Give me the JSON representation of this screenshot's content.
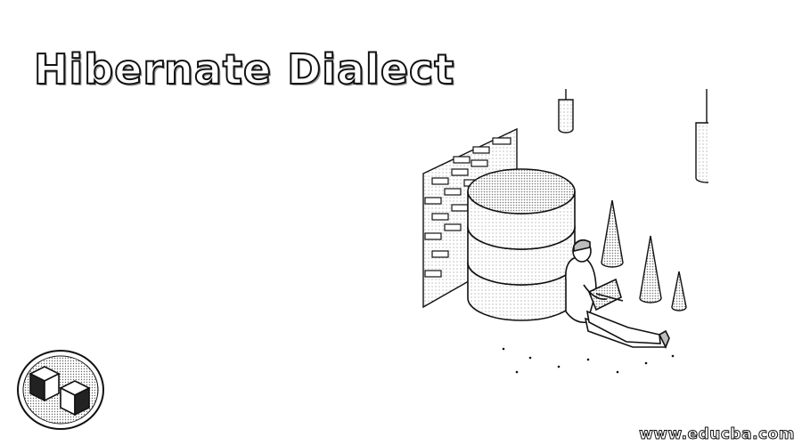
{
  "banner": {
    "title": "Hibernate Dialect",
    "website": "www.educba.com"
  },
  "illustration": {
    "subject": "person-with-laptop-beside-database",
    "stroke_color": "#111111",
    "fill_color": "#ffffff",
    "shade_color": "#bdbdbd"
  },
  "logo": {
    "icon": "educba-cube-logo"
  }
}
